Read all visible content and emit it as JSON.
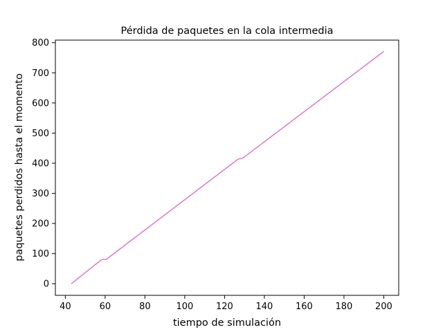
{
  "chart_data": {
    "type": "line",
    "title": "Pérdida de paquetes en la cola intermedia",
    "xlabel": "tiempo de simulación",
    "ylabel": "paquetes perdidos hasta el momento",
    "xlim": [
      35,
      207.5
    ],
    "ylim": [
      -38.5,
      808.5
    ],
    "xticks": [
      40,
      60,
      80,
      100,
      120,
      140,
      160,
      180,
      200
    ],
    "yticks": [
      0,
      100,
      200,
      300,
      400,
      500,
      600,
      700,
      800
    ],
    "grid": false,
    "series": [
      {
        "color": "#e377c2",
        "x": [
          43,
          58,
          59.5,
          60.5,
          62,
          126.5,
          127.5,
          128.5,
          130,
          200
        ],
        "y": [
          0,
          79,
          81,
          81,
          88,
          412,
          415,
          415,
          421,
          771
        ]
      }
    ]
  }
}
